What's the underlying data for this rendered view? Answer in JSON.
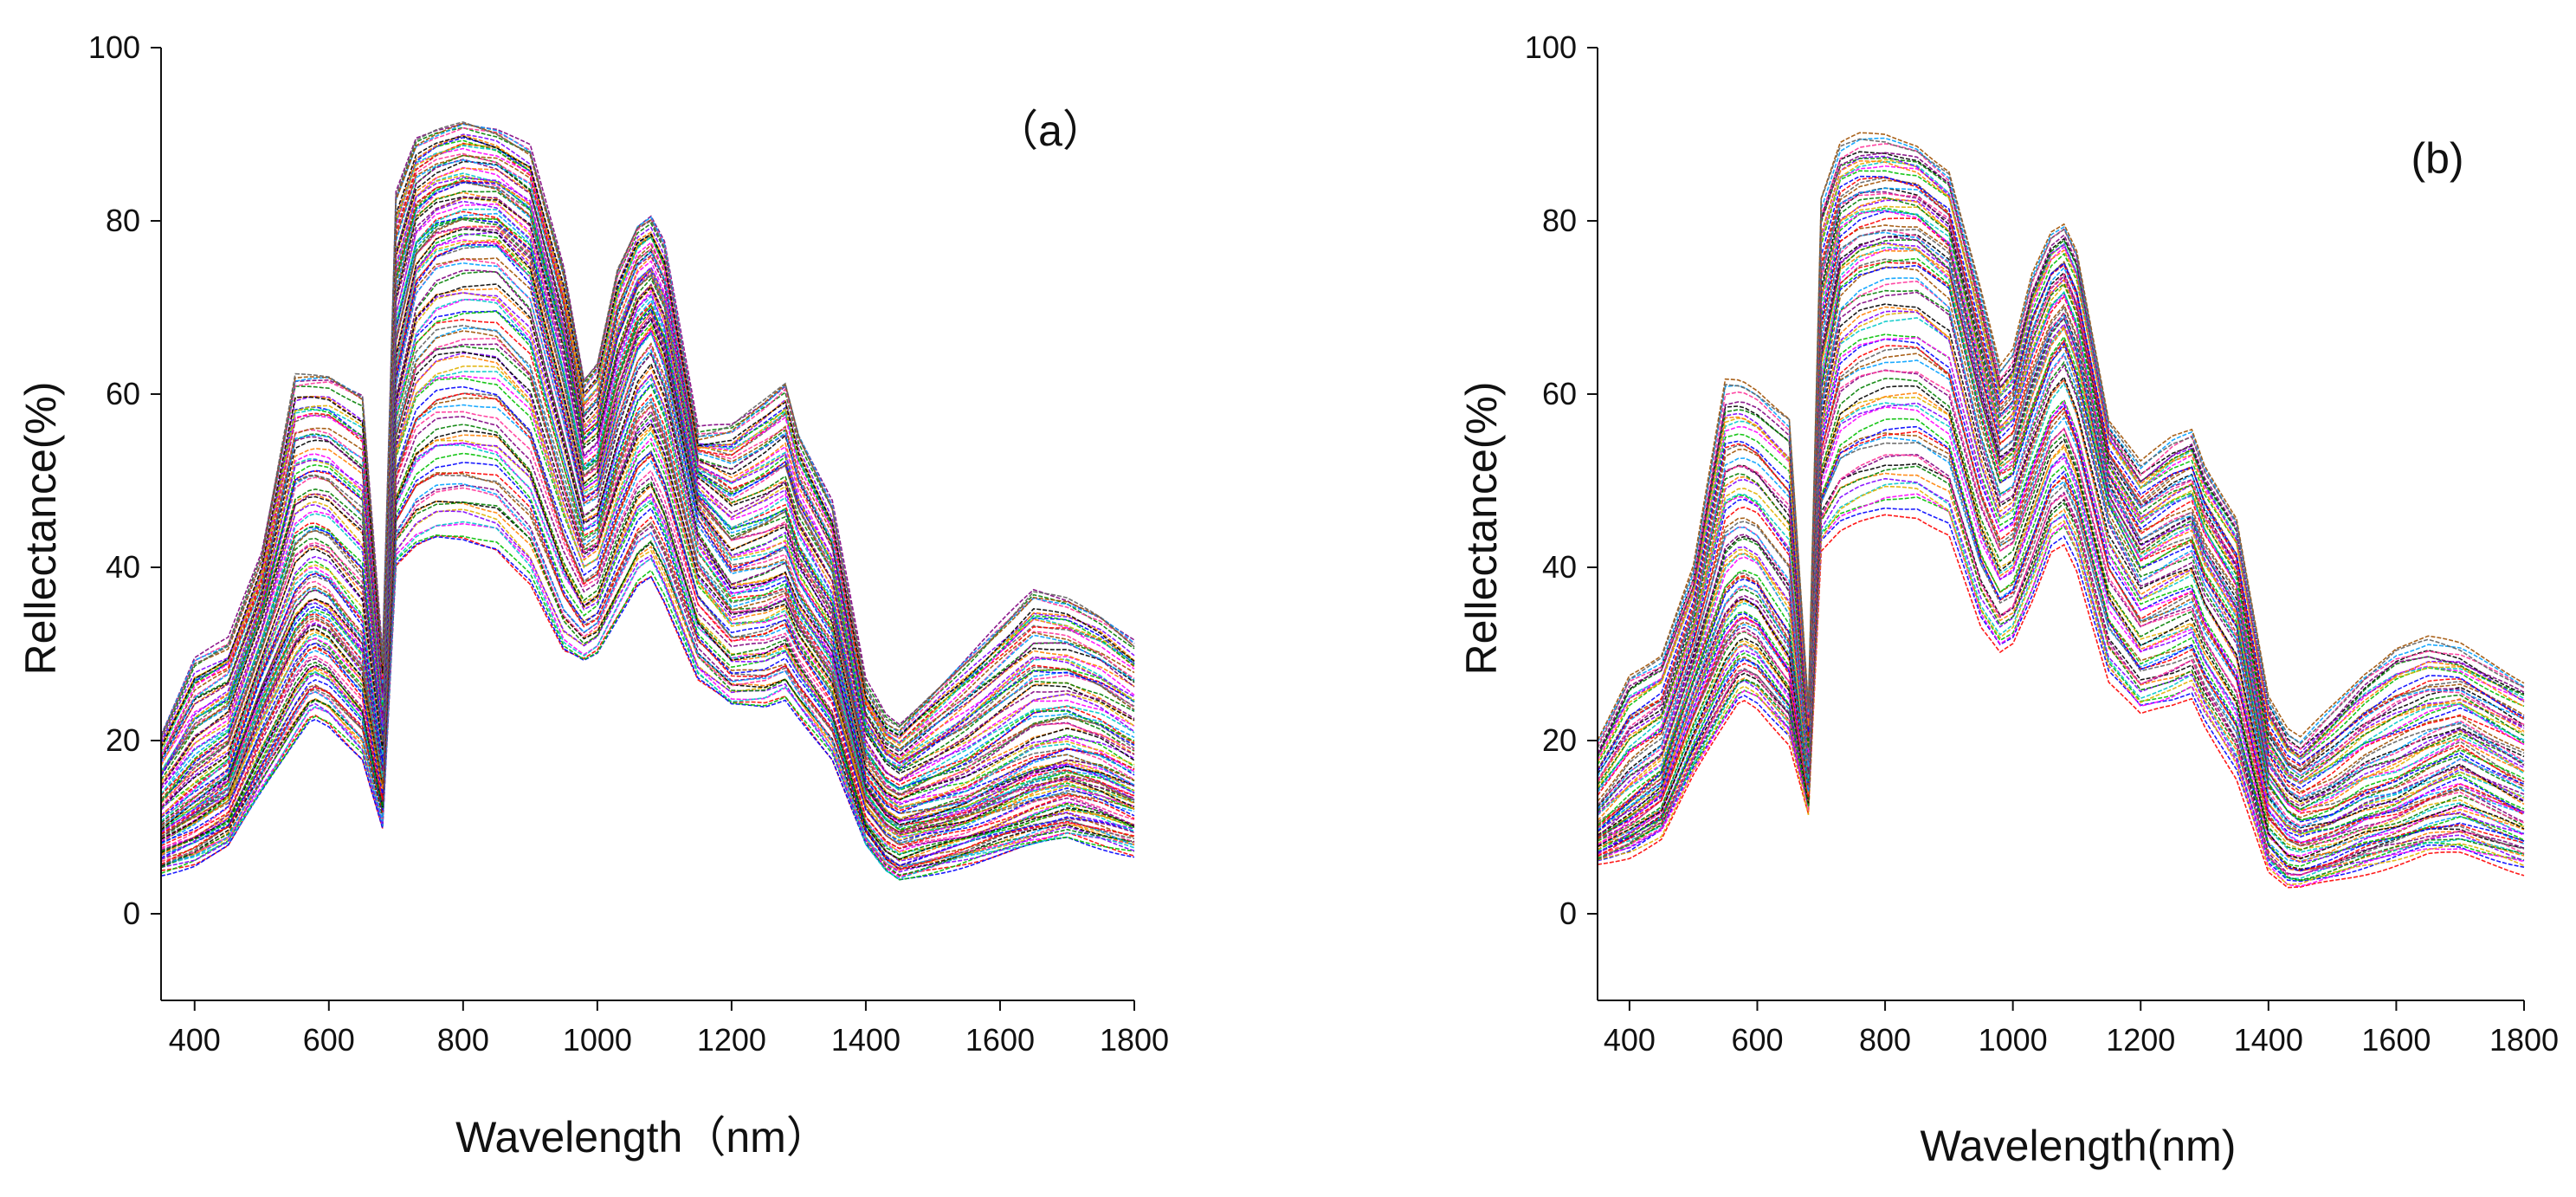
{
  "chart_data": [
    {
      "type": "line",
      "panel_label": "（a）",
      "xlabel": "Wavelength（nm）",
      "ylabel": "Rellectance(%)",
      "xlim": [
        350,
        1800
      ],
      "ylim": [
        -10,
        100
      ],
      "xticks": [
        400,
        600,
        800,
        1000,
        1200,
        1400,
        1600,
        1800
      ],
      "yticks": [
        0,
        20,
        40,
        60,
        80,
        100
      ],
      "series_count": 120,
      "representative_series": {
        "x": [
          350,
          400,
          450,
          500,
          550,
          575,
          600,
          650,
          680,
          700,
          730,
          760,
          800,
          850,
          900,
          950,
          980,
          1000,
          1030,
          1060,
          1080,
          1100,
          1150,
          1200,
          1250,
          1280,
          1300,
          1350,
          1400,
          1430,
          1450,
          1500,
          1550,
          1600,
          1650,
          1700,
          1750,
          1800
        ],
        "y": [
          11,
          14,
          17,
          28,
          37,
          39,
          38,
          33,
          18,
          62,
          73,
          76,
          77,
          77,
          73,
          58,
          48,
          49,
          58,
          65,
          67,
          63,
          46,
          40,
          41,
          42,
          38,
          32,
          16,
          13,
          12,
          13,
          14,
          16,
          18,
          19,
          18,
          16
        ],
        "min": [
          5,
          6,
          8,
          14,
          20,
          23,
          22,
          18,
          10,
          40,
          42,
          43,
          43,
          42,
          38,
          30,
          29,
          30,
          34,
          38,
          39,
          36,
          27,
          24,
          24,
          25,
          23,
          18,
          8,
          5,
          4,
          5,
          6,
          7,
          8,
          9,
          8,
          7
        ],
        "max": [
          21,
          30,
          32,
          42,
          63,
          63,
          63,
          61,
          30,
          84,
          90,
          91,
          92,
          91,
          89,
          75,
          62,
          64,
          75,
          80,
          81,
          78,
          56,
          57,
          60,
          62,
          56,
          48,
          27,
          23,
          22,
          26,
          30,
          34,
          38,
          37,
          35,
          32
        ]
      }
    },
    {
      "type": "line",
      "panel_label": "(b)",
      "xlabel": "Wavelength(nm)",
      "ylabel": "Rellectance(%)",
      "xlim": [
        350,
        1800
      ],
      "ylim": [
        -10,
        100
      ],
      "xticks": [
        400,
        600,
        800,
        1000,
        1200,
        1400,
        1600,
        1800
      ],
      "yticks": [
        0,
        20,
        40,
        60,
        80,
        100
      ],
      "series_count": 90,
      "representative_series": {
        "x": [
          350,
          400,
          450,
          500,
          550,
          575,
          600,
          650,
          680,
          700,
          730,
          760,
          800,
          850,
          900,
          950,
          980,
          1000,
          1030,
          1060,
          1080,
          1100,
          1150,
          1200,
          1250,
          1280,
          1300,
          1350,
          1400,
          1430,
          1450,
          1500,
          1550,
          1600,
          1650,
          1700,
          1750,
          1800
        ],
        "y": [
          10,
          13,
          16,
          27,
          37,
          39,
          38,
          32,
          15,
          60,
          72,
          74,
          75,
          75,
          72,
          57,
          50,
          51,
          58,
          64,
          66,
          62,
          47,
          40,
          42,
          43,
          39,
          33,
          15,
          12,
          11,
          12,
          14,
          15,
          17,
          19,
          17,
          15
        ],
        "min": [
          6,
          7,
          9,
          16,
          22,
          25,
          24,
          20,
          12,
          42,
          44,
          45,
          46,
          46,
          44,
          33,
          30,
          31,
          36,
          42,
          43,
          40,
          27,
          23,
          24,
          25,
          22,
          16,
          5,
          3,
          3,
          4,
          5,
          6,
          7,
          7,
          6,
          5
        ],
        "max": [
          20,
          28,
          30,
          40,
          62,
          62,
          61,
          58,
          24,
          83,
          89,
          90,
          90,
          89,
          86,
          72,
          63,
          65,
          74,
          79,
          80,
          77,
          57,
          52,
          55,
          56,
          52,
          46,
          25,
          21,
          20,
          24,
          28,
          31,
          32,
          31,
          29,
          27
        ]
      }
    }
  ]
}
